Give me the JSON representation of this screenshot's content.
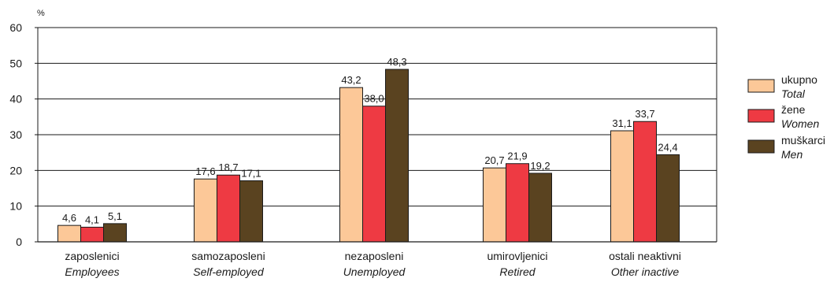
{
  "chart_data": {
    "type": "bar",
    "ylabel": "%",
    "ylim": [
      0,
      60
    ],
    "yticks": [
      0,
      10,
      20,
      30,
      40,
      50,
      60
    ],
    "grid": true,
    "legend_position": "right",
    "categories": [
      {
        "label": "zaposlenici",
        "sublabel": "Employees"
      },
      {
        "label": "samozaposleni",
        "sublabel": "Self-employed"
      },
      {
        "label": "nezaposleni",
        "sublabel": "Unemployed"
      },
      {
        "label": "umirovljenici",
        "sublabel": "Retired"
      },
      {
        "label": "ostali neaktivni",
        "sublabel": "Other inactive"
      }
    ],
    "series": [
      {
        "name": "ukupno",
        "subname": "Total",
        "color": "#FCC898",
        "values": [
          4.6,
          17.6,
          43.2,
          20.7,
          31.1
        ],
        "labels": [
          "4,6",
          "17,6",
          "43,2",
          "20,7",
          "31,1"
        ]
      },
      {
        "name": "žene",
        "subname": "Women",
        "color": "#EE3A43",
        "values": [
          4.1,
          18.7,
          38.0,
          21.9,
          33.7
        ],
        "labels": [
          "4,1",
          "18,7",
          "38,0",
          "21,9",
          "33,7"
        ]
      },
      {
        "name": "muškarci",
        "subname": "Men",
        "color": "#5A4320",
        "values": [
          5.1,
          17.1,
          48.3,
          19.2,
          24.4
        ],
        "labels": [
          "5,1",
          "17,1",
          "48,3",
          "19,2",
          "24,4"
        ]
      }
    ]
  }
}
